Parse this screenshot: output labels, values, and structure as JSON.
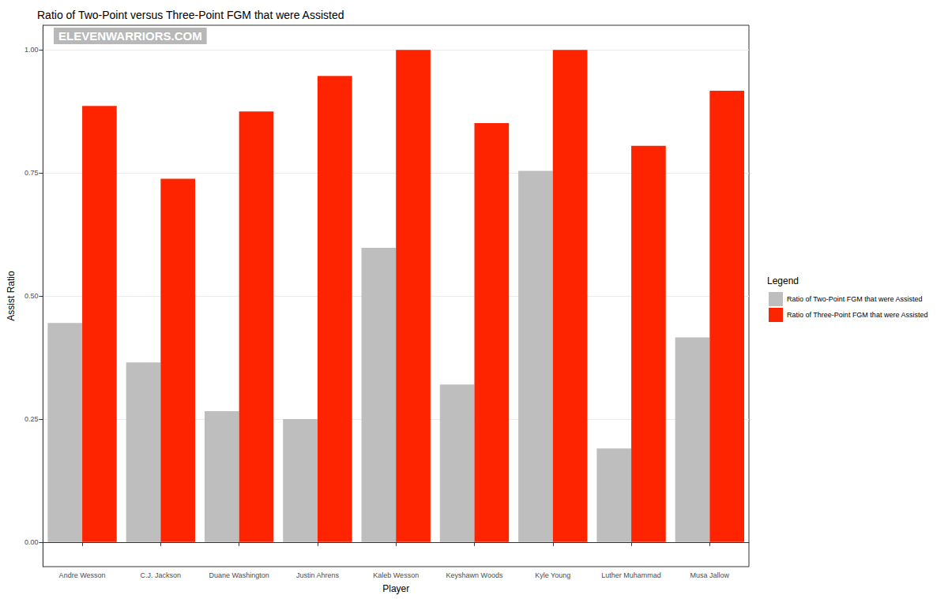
{
  "chart_data": {
    "type": "bar",
    "title": "Ratio of Two-Point versus Three-Point FGM that were Assisted",
    "annotation": "ELEVENWARRIORS.COM",
    "x_label": "Player",
    "y_label": "Assist Ratio",
    "legend_title": "Legend",
    "legend": "right",
    "grid": true,
    "categories": [
      "Andre Wesson",
      "C.J. Jackson",
      "Duane Washington",
      "Justin Ahrens",
      "Kaleb Wesson",
      "Keyshawn Woods",
      "Kyle Young",
      "Luther Muhammad",
      "Musa Jallow"
    ],
    "series": [
      {
        "name": "Ratio of Two-Point FGM that were Assisted",
        "color": "#bebebe",
        "values": [
          0.445,
          0.365,
          0.266,
          0.25,
          0.598,
          0.32,
          0.754,
          0.19,
          0.416
        ]
      },
      {
        "name": "Ratio of Three-Point FGM that were Assisted",
        "color": "#ff2400",
        "values": [
          0.886,
          0.738,
          0.875,
          0.947,
          1.0,
          0.851,
          1.0,
          0.805,
          0.917
        ]
      }
    ],
    "ylim": [
      -0.05,
      1.05
    ],
    "yticks": [
      {
        "value": 0,
        "label": "0.00"
      },
      {
        "value": 0.25,
        "label": "0.25"
      },
      {
        "value": 0.5,
        "label": "0.50"
      },
      {
        "value": 0.75,
        "label": "0.75"
      },
      {
        "value": 1,
        "label": "1.00"
      }
    ]
  }
}
